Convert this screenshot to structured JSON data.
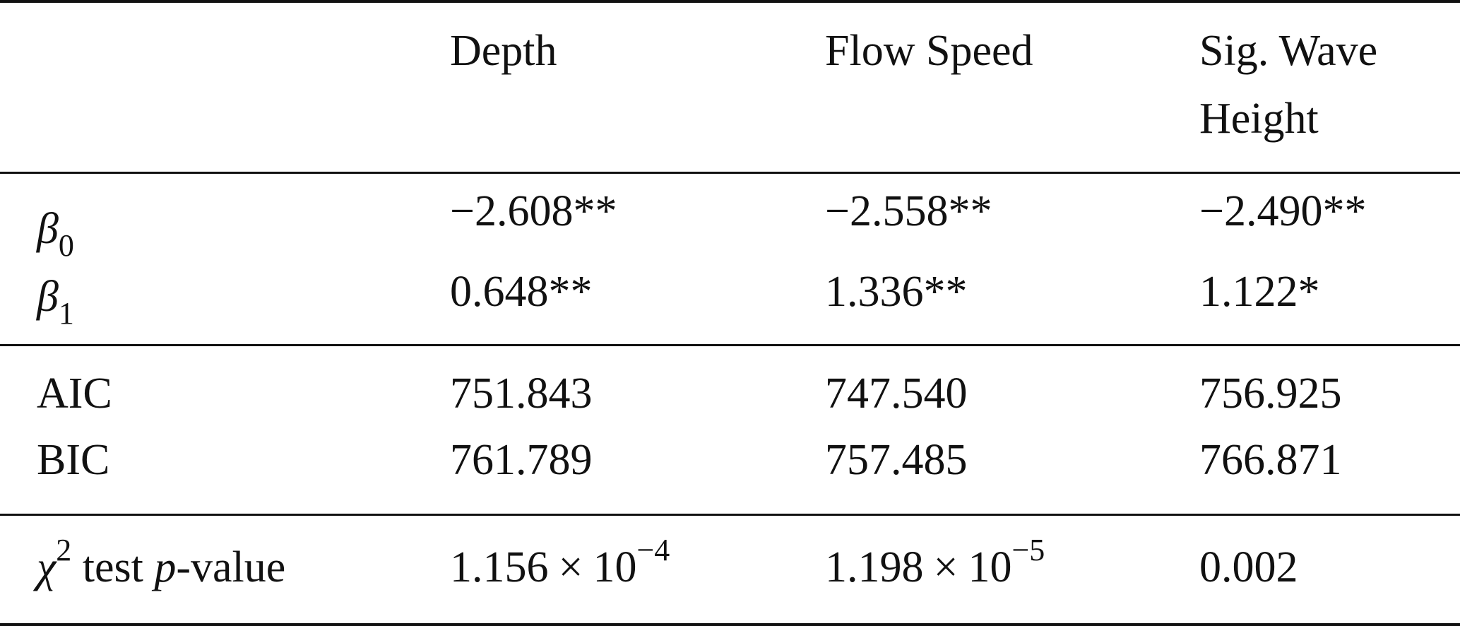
{
  "table": {
    "columns": [
      "",
      "Depth",
      "Flow Speed",
      "Sig. Wave Height"
    ],
    "rows": {
      "beta0": {
        "symbol": "β",
        "subscript": "0",
        "values": [
          "−2.608**",
          "−2.558**",
          "−2.490**"
        ]
      },
      "beta1": {
        "symbol": "β",
        "subscript": "1",
        "values": [
          "0.648**",
          "1.336**",
          "1.122*"
        ]
      },
      "aic": {
        "label": "AIC",
        "values": [
          "751.843",
          "747.540",
          "756.925"
        ]
      },
      "bic": {
        "label": "BIC",
        "values": [
          "761.789",
          "757.485",
          "766.871"
        ]
      },
      "chi": {
        "symbol": "χ",
        "superscript": "2",
        "label_mid": " test ",
        "label_italic": "p",
        "label_end": "-value",
        "values": [
          {
            "mantissa": "1.156",
            "times": "×",
            "base": "10",
            "exponent": "−4"
          },
          {
            "mantissa": "1.198",
            "times": "×",
            "base": "10",
            "exponent": "−5"
          },
          {
            "text": "0.002"
          }
        ]
      }
    }
  }
}
